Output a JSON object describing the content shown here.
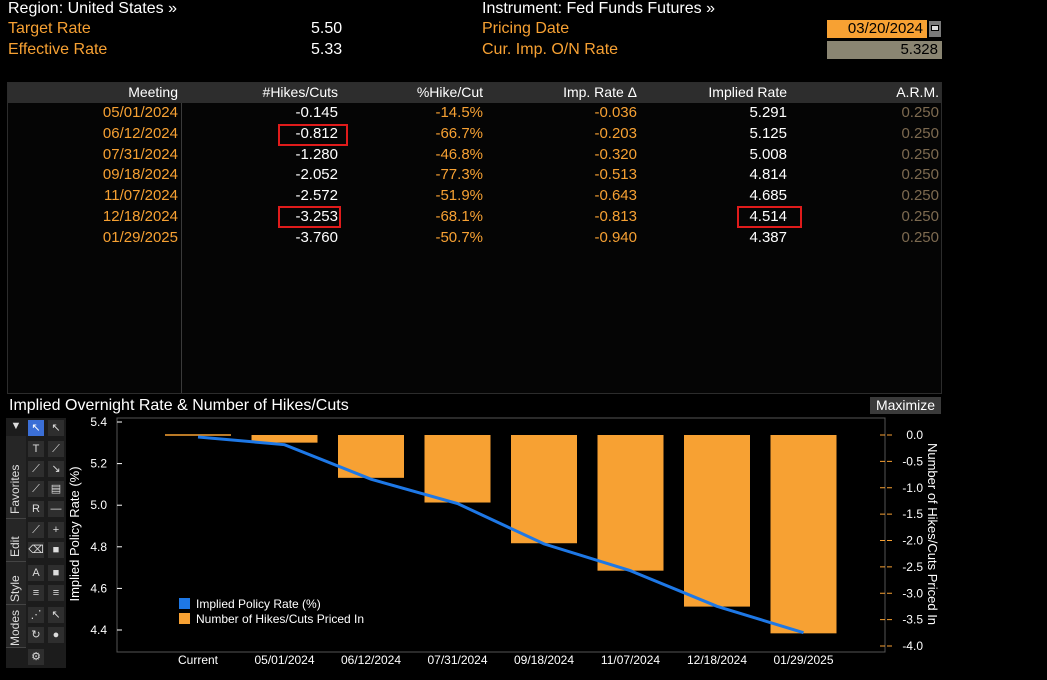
{
  "header": {
    "region": "Region: United States »",
    "target_rate_label": "Target Rate",
    "target_rate_value": "5.50",
    "effective_rate_label": "Effective Rate",
    "effective_rate_value": "5.33",
    "instrument": "Instrument: Fed Funds Futures »",
    "pricing_date_label": "Pricing Date",
    "pricing_date_value": "03/20/2024",
    "cur_imp_label": "Cur. Imp. O/N Rate",
    "cur_imp_value": "5.328"
  },
  "table": {
    "columns": [
      "Meeting",
      "#Hikes/Cuts",
      "%Hike/Cut",
      "Imp. Rate Δ",
      "Implied Rate",
      "A.R.M."
    ],
    "rows": [
      {
        "meeting": "05/01/2024",
        "hikes": "-0.145",
        "pct": "-14.5%",
        "delta": "-0.036",
        "implied": "5.291",
        "arm": "0.250"
      },
      {
        "meeting": "06/12/2024",
        "hikes": "-0.812",
        "pct": "-66.7%",
        "delta": "-0.203",
        "implied": "5.125",
        "arm": "0.250"
      },
      {
        "meeting": "07/31/2024",
        "hikes": "-1.280",
        "pct": "-46.8%",
        "delta": "-0.320",
        "implied": "5.008",
        "arm": "0.250"
      },
      {
        "meeting": "09/18/2024",
        "hikes": "-2.052",
        "pct": "-77.3%",
        "delta": "-0.513",
        "implied": "4.814",
        "arm": "0.250"
      },
      {
        "meeting": "11/07/2024",
        "hikes": "-2.572",
        "pct": "-51.9%",
        "delta": "-0.643",
        "implied": "4.685",
        "arm": "0.250"
      },
      {
        "meeting": "12/18/2024",
        "hikes": "-3.253",
        "pct": "-68.1%",
        "delta": "-0.813",
        "implied": "4.514",
        "arm": "0.250"
      },
      {
        "meeting": "01/29/2025",
        "hikes": "-3.760",
        "pct": "-50.7%",
        "delta": "-0.940",
        "implied": "4.387",
        "arm": "0.250"
      }
    ]
  },
  "chart_panel": {
    "title": "Implied Overnight Rate & Number of Hikes/Cuts",
    "maximize_label": "Maximize",
    "toolbar_tabs": [
      "Favorites",
      "Edit",
      "Style",
      "Modes"
    ]
  },
  "chart_data": {
    "type": "bar+line",
    "categories": [
      "Current",
      "05/01/2024",
      "06/12/2024",
      "07/31/2024",
      "09/18/2024",
      "11/07/2024",
      "12/18/2024",
      "01/29/2025"
    ],
    "series": [
      {
        "name": "Implied Policy Rate (%)",
        "type": "line",
        "color": "#1e78e6",
        "axis": "left",
        "values": [
          5.328,
          5.291,
          5.125,
          5.008,
          4.814,
          4.685,
          4.514,
          4.387
        ]
      },
      {
        "name": "Number of Hikes/Cuts Priced In",
        "type": "bar",
        "color": "#f7a133",
        "axis": "right",
        "values": [
          0,
          -0.145,
          -0.812,
          -1.28,
          -2.052,
          -2.572,
          -3.253,
          -3.76
        ]
      }
    ],
    "ylabel": "Implied Policy Rate (%)",
    "ylabel_right": "Number of Hikes/Cuts Priced In",
    "ylim": [
      4.35,
      5.43
    ],
    "yticks": [
      "5.4",
      "5.2",
      "5.0",
      "4.8",
      "4.6",
      "4.4"
    ],
    "ylim_right": [
      -4.0,
      0.25
    ],
    "yticks_right": [
      "0.0",
      "-0.5",
      "-1.0",
      "-1.5",
      "-2.0",
      "-2.5",
      "-3.0",
      "-3.5",
      "-4.0"
    ],
    "legend_placement": "bottom-left",
    "grid": false
  }
}
